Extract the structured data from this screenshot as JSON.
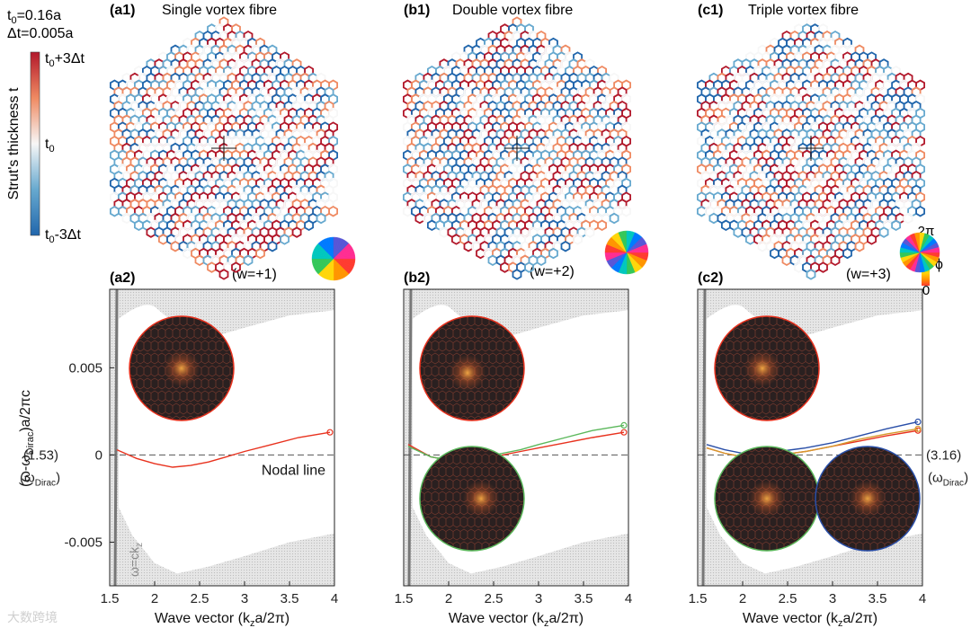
{
  "params": {
    "t0_label": "t",
    "t0_sub": "0",
    "t0_value": "=0.16a",
    "dt_label": "Δt=0.005a"
  },
  "colorbar": {
    "axis_title": "Strut's thickness t",
    "top_label": "t",
    "top_sub": "0",
    "top_suffix": "+3Δt",
    "mid_label": "t",
    "mid_sub": "0",
    "bot_label": "t",
    "bot_sub": "0",
    "bot_suffix": "-3Δt",
    "colors": [
      "#b2182b",
      "#ef8a62",
      "#f7f7f7",
      "#67a9cf",
      "#2166ac"
    ]
  },
  "phase_bar": {
    "top": "2π",
    "symbol": "ϕ",
    "bottom": "0",
    "colors": [
      "#ff3b30",
      "#ff9500",
      "#ffd60a",
      "#34c759",
      "#00c7be",
      "#007aff",
      "#5856d6",
      "#ff2d92"
    ]
  },
  "lattice_panels": [
    {
      "tag": "(a1)",
      "title": "Single vortex fibre",
      "winding": "(w=+1)"
    },
    {
      "tag": "(b1)",
      "title": "Double vortex fibre",
      "winding": "(w=+2)"
    },
    {
      "tag": "(c1)",
      "title": "Triple vortex fibre",
      "winding": "(w=+3)"
    }
  ],
  "chart_data": [
    {
      "type": "line",
      "tag": "(a2)",
      "xlabel": "Wave vector (k",
      "xlabel_sub": "z",
      "xlabel_suffix": "a/2π)",
      "ylabel": "(ω-ω",
      "ylabel_sub": "Dirac",
      "ylabel_suffix": ")a/2πc",
      "xlim": [
        1.5,
        4.0
      ],
      "ylim": [
        -0.0075,
        0.0095
      ],
      "xticks": [
        "1.5",
        "2",
        "2.5",
        "3",
        "3.5",
        "4"
      ],
      "yticks": [
        "0.005",
        "0",
        "-0.005"
      ],
      "ytick_values": [
        0.005,
        0,
        -0.005
      ],
      "dirac_value": "(1.53)",
      "dirac_label": "(ω",
      "dirac_sub": "Dirac",
      "annotation": "Nodal line",
      "light_line": "ω=ck",
      "light_line_sub": "z",
      "series": [
        {
          "color": "#e8321e",
          "x": [
            1.58,
            1.8,
            2.0,
            2.2,
            2.4,
            2.6,
            2.8,
            3.0,
            3.3,
            3.6,
            3.95
          ],
          "y": [
            0.0003,
            -0.0002,
            -0.0005,
            -0.0007,
            -0.0006,
            -0.0004,
            -0.0001,
            0.0002,
            0.0006,
            0.001,
            0.0013
          ]
        }
      ]
    },
    {
      "type": "line",
      "tag": "(b2)",
      "xlabel": "Wave vector (k",
      "xlabel_sub": "z",
      "xlabel_suffix": "a/2π)",
      "xlim": [
        1.5,
        4.0
      ],
      "ylim": [
        -0.0075,
        0.0095
      ],
      "xticks": [
        "1.5",
        "2",
        "2.5",
        "3",
        "3.5",
        "4"
      ],
      "series": [
        {
          "color": "#e8321e",
          "x": [
            1.55,
            1.8,
            2.0,
            2.2,
            2.4,
            2.6,
            2.8,
            3.0,
            3.3,
            3.6,
            3.95
          ],
          "y": [
            0.0006,
            -0.0001,
            -0.0003,
            -0.0003,
            -0.0002,
            0.0,
            0.0002,
            0.0004,
            0.0007,
            0.001,
            0.0013
          ]
        },
        {
          "color": "#5cb85c",
          "x": [
            1.55,
            1.8,
            2.0,
            2.2,
            2.4,
            2.6,
            2.8,
            3.0,
            3.3,
            3.6,
            3.95
          ],
          "y": [
            0.0005,
            -0.0001,
            -0.0003,
            -0.0002,
            -0.0001,
            0.0001,
            0.0003,
            0.0006,
            0.001,
            0.0014,
            0.0017
          ]
        }
      ]
    },
    {
      "type": "line",
      "tag": "(c2)",
      "xlabel": "Wave vector (k",
      "xlabel_sub": "z",
      "xlabel_suffix": "a/2π)",
      "xlim": [
        1.5,
        4.0
      ],
      "ylim": [
        -0.0075,
        0.0095
      ],
      "xticks": [
        "1.5",
        "2",
        "2.5",
        "3",
        "3.5",
        "4"
      ],
      "dirac_value": "(3.16)",
      "dirac_label": "(ω",
      "dirac_sub": "Dirac",
      "series": [
        {
          "color": "#2a4fa8",
          "x": [
            1.6,
            1.8,
            2.0,
            2.2,
            2.4,
            2.7,
            3.0,
            3.3,
            3.6,
            3.95
          ],
          "y": [
            0.0006,
            0.0003,
            0.0001,
            0.0001,
            0.0002,
            0.0004,
            0.0007,
            0.0011,
            0.0015,
            0.0019
          ]
        },
        {
          "color": "#e8321e",
          "x": [
            1.6,
            1.8,
            2.0,
            2.2,
            2.4,
            2.7,
            3.0,
            3.3,
            3.6,
            3.95
          ],
          "y": [
            0.0004,
            0.0001,
            -0.0001,
            -0.0001,
            0.0,
            0.0002,
            0.0005,
            0.0008,
            0.0011,
            0.0014
          ]
        },
        {
          "color": "#d69a2d",
          "x": [
            1.6,
            1.8,
            2.0,
            2.2,
            2.4,
            2.7,
            3.0,
            3.3,
            3.6,
            3.95
          ],
          "y": [
            0.0004,
            0.0001,
            -0.0001,
            -0.0001,
            0.0,
            0.0002,
            0.0005,
            0.0009,
            0.0012,
            0.0015
          ]
        }
      ]
    }
  ],
  "watermark": "大数跨境"
}
